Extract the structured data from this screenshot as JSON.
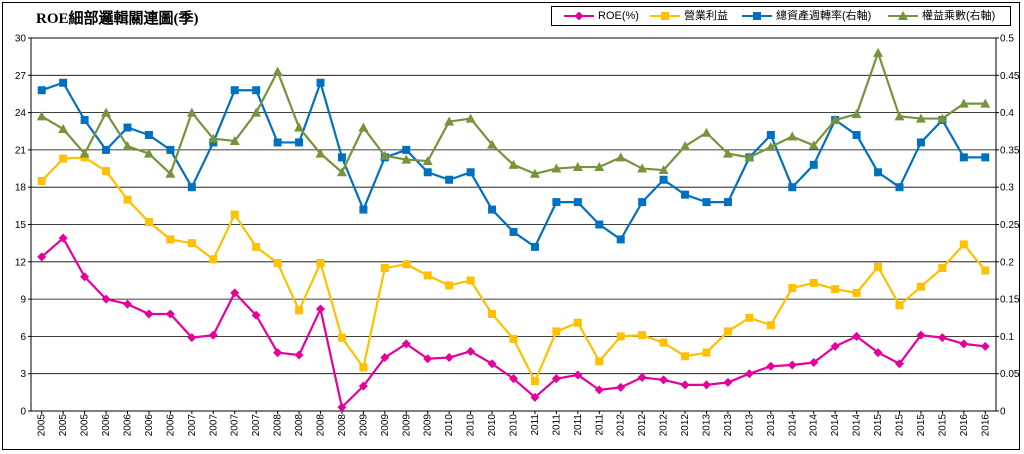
{
  "chart_data": {
    "type": "line",
    "title": "ROE細部邏輯關連圖(季)",
    "xlabel": "",
    "ylabel": "",
    "ylim_left": [
      0,
      30
    ],
    "ylim_right": [
      0,
      0.5
    ],
    "left_ticks": [
      "0",
      "3",
      "6",
      "9",
      "12",
      "15",
      "18",
      "21",
      "24",
      "27",
      "30"
    ],
    "right_ticks": [
      "0",
      "0.05",
      "0.1",
      "0.15",
      "0.2",
      "0.25",
      "0.3",
      "0.35",
      "0.4",
      "0.45",
      "0.5"
    ],
    "grid": true,
    "legend_position": "top-right",
    "categories": [
      "2005",
      "2005",
      "2005",
      "2006",
      "2006",
      "2006",
      "2006",
      "2007",
      "2007",
      "2007",
      "2007",
      "2008",
      "2008",
      "2008",
      "2008",
      "2009",
      "2009",
      "2009",
      "2009",
      "2010",
      "2010",
      "2010",
      "2010",
      "2011",
      "2011",
      "2011",
      "2011",
      "2012",
      "2012",
      "2012",
      "2012",
      "2013",
      "2013",
      "2013",
      "2013",
      "2014",
      "2014",
      "2014",
      "2014",
      "2015",
      "2015",
      "2015",
      "2015",
      "2016",
      "2016"
    ],
    "series": [
      {
        "name": "ROE(%)",
        "axis": "left",
        "color": "#e6009b",
        "marker": "diamond",
        "values": [
          12.4,
          13.9,
          10.8,
          9.0,
          8.6,
          7.8,
          7.8,
          5.9,
          6.1,
          9.5,
          7.7,
          4.7,
          4.5,
          8.2,
          0.3,
          2.0,
          4.3,
          5.4,
          4.2,
          4.3,
          4.8,
          3.8,
          2.6,
          1.1,
          2.6,
          2.9,
          1.7,
          1.9,
          2.7,
          2.5,
          2.1,
          2.1,
          2.3,
          3.0,
          3.6,
          3.7,
          3.9,
          5.2,
          6.0,
          4.7,
          3.8,
          6.1,
          5.9,
          5.4,
          5.2
        ]
      },
      {
        "name": "營業利益",
        "axis": "left",
        "color": "#ffc000",
        "marker": "square",
        "values": [
          18.5,
          20.3,
          20.4,
          19.3,
          17.0,
          15.2,
          13.8,
          13.5,
          12.2,
          15.8,
          13.2,
          11.9,
          8.1,
          11.9,
          5.9,
          3.5,
          11.5,
          11.8,
          10.9,
          10.1,
          10.5,
          7.8,
          5.8,
          2.4,
          6.4,
          7.1,
          4.0,
          6.0,
          6.1,
          5.5,
          4.4,
          4.7,
          6.4,
          7.5,
          6.9,
          9.9,
          10.3,
          9.8,
          9.5,
          11.6,
          8.5,
          10.0,
          11.5,
          13.4,
          11.3
        ]
      },
      {
        "name": "總資產週轉率(右軸)",
        "axis": "right",
        "color": "#0070c0",
        "marker": "square",
        "values": [
          0.43,
          0.44,
          0.39,
          0.35,
          0.38,
          0.37,
          0.35,
          0.3,
          0.36,
          0.43,
          0.43,
          0.36,
          0.36,
          0.44,
          0.34,
          0.27,
          0.34,
          0.35,
          0.32,
          0.31,
          0.32,
          0.27,
          0.24,
          0.22,
          0.28,
          0.28,
          0.25,
          0.23,
          0.28,
          0.31,
          0.29,
          0.28,
          0.28,
          0.34,
          0.37,
          0.3,
          0.33,
          0.39,
          0.37,
          0.32,
          0.3,
          0.36,
          0.39,
          0.34,
          0.34
        ]
      },
      {
        "name": "權益乘數(右軸)",
        "axis": "right",
        "color": "#77933c",
        "marker": "triangle",
        "values": [
          0.395,
          0.378,
          0.345,
          0.4,
          0.355,
          0.345,
          0.318,
          0.4,
          0.365,
          0.362,
          0.4,
          0.455,
          0.38,
          0.345,
          0.32,
          0.38,
          0.342,
          0.337,
          0.335,
          0.388,
          0.392,
          0.357,
          0.33,
          0.318,
          0.325,
          0.327,
          0.327,
          0.34,
          0.325,
          0.323,
          0.355,
          0.373,
          0.345,
          0.34,
          0.354,
          0.368,
          0.356,
          0.39,
          0.398,
          0.48,
          0.395,
          0.392,
          0.392,
          0.412,
          0.412
        ]
      }
    ]
  }
}
